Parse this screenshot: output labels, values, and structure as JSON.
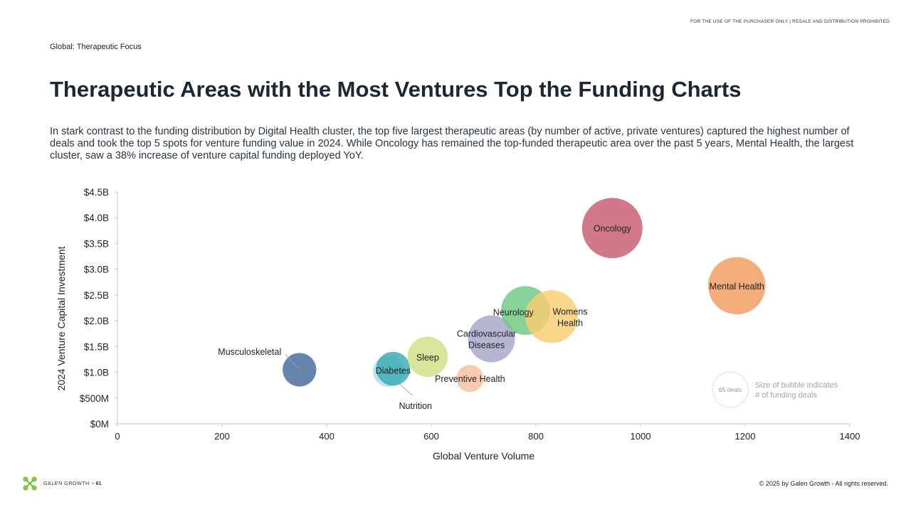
{
  "header": {
    "disclaimer": "FOR THE USE OF THE PURCHASER ONLY | RESALE AND DISTRIBUTION PROHIBITED",
    "section": "Global: Therapeutic Focus",
    "title": "Therapeutic Areas with the Most Ventures Top the Funding Charts",
    "description": "In stark contrast to the funding distribution by Digital Health cluster, the top five largest therapeutic areas (by number of active, private ventures) captured the highest number of deals and took the top 5 spots for venture funding value in 2024. While Oncology has remained the top-funded therapeutic area over the past 5 years, Mental Health, the largest cluster, saw a 38% increase of venture capital funding deployed YoY."
  },
  "chart_data": {
    "type": "scatter",
    "xlabel": "Global Venture Volume",
    "ylabel": "2024 Venture Capital Investment",
    "xlim": [
      0,
      1400
    ],
    "ylim": [
      0,
      4.5
    ],
    "x_ticks": [
      "0",
      "200",
      "400",
      "600",
      "800",
      "1000",
      "1200",
      "1400"
    ],
    "y_ticks": [
      "$0M",
      "$500M",
      "$1.0B",
      "$1.5B",
      "$2.0B",
      "$2.5B",
      "$3.0B",
      "$3.5B",
      "$4.0B",
      "$4.5B"
    ],
    "grid": false,
    "bubble_size_note": "Size of bubble indicates # of funding deals",
    "size_legend_label": "65 deals",
    "size_legend_value": 65,
    "points": [
      {
        "label": "Musculoskeletal",
        "x": 348,
        "y": 1.05,
        "deals": 64,
        "color": "#46699a"
      },
      {
        "label": "Nutrition",
        "x": 518,
        "y": 1.02,
        "deals": 55,
        "color": "#a9e0ec"
      },
      {
        "label": "Diabetes",
        "x": 527,
        "y": 1.07,
        "deals": 65,
        "color": "#3aaab3"
      },
      {
        "label": "Sleep",
        "x": 593,
        "y": 1.3,
        "deals": 92,
        "color": "#cfe185"
      },
      {
        "label": "Preventive Health",
        "x": 674,
        "y": 0.88,
        "deals": 42,
        "color": "#f7c0a0"
      },
      {
        "label": "Cardiovascular Diseases",
        "x": 715,
        "y": 1.65,
        "deals": 125,
        "color": "#a5a6cb"
      },
      {
        "label": "Neurology",
        "x": 780,
        "y": 2.2,
        "deals": 135,
        "color": "#6cc883"
      },
      {
        "label": "Womens Health",
        "x": 830,
        "y": 2.08,
        "deals": 158,
        "color": "#f9cd70"
      },
      {
        "label": "Oncology",
        "x": 946,
        "y": 3.8,
        "deals": 207,
        "color": "#c85a71"
      },
      {
        "label": "Mental Health",
        "x": 1184,
        "y": 2.68,
        "deals": 186,
        "color": "#f09a5d"
      }
    ]
  },
  "footer": {
    "brand": "GALEN GROWTH",
    "page": "– 61",
    "copyright": "© 2025 by Galen Growth  - All rights reserved."
  },
  "colors": {
    "title": "#1c2733",
    "axis": "#b9c7d3",
    "logo": "#7fc241"
  }
}
